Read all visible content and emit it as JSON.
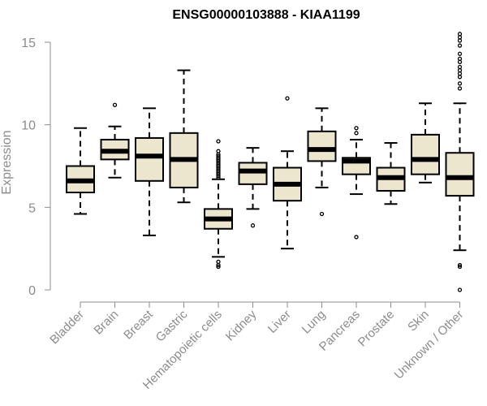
{
  "chart_data": {
    "type": "boxplot",
    "title": "ENSG00000103888 - KIAA1199",
    "xlabel": "",
    "ylabel": "Expression",
    "ylim": [
      0,
      15
    ],
    "yticks": [
      0,
      5,
      10,
      15
    ],
    "box_fill": "#ede6cf",
    "line_color": "#000000",
    "axis_color": "#8c8c8c",
    "categories": [
      "Bladder",
      "Brain",
      "Breast",
      "Gastric",
      "Hematopoietic cells",
      "Kidney",
      "Liver",
      "Lung",
      "Pancreas",
      "Prostate",
      "Skin",
      "Unknown / Other"
    ],
    "boxes": [
      {
        "name": "Bladder",
        "min": 4.6,
        "q1": 5.9,
        "median": 6.6,
        "q3": 7.5,
        "max": 9.8,
        "outliers": []
      },
      {
        "name": "Brain",
        "min": 6.8,
        "q1": 7.9,
        "median": 8.4,
        "q3": 9.1,
        "max": 9.9,
        "outliers": [
          11.2
        ]
      },
      {
        "name": "Breast",
        "min": 3.3,
        "q1": 6.6,
        "median": 8.1,
        "q3": 9.2,
        "max": 11.0,
        "outliers": []
      },
      {
        "name": "Gastric",
        "min": 5.3,
        "q1": 6.2,
        "median": 7.9,
        "q3": 9.5,
        "max": 13.3,
        "outliers": []
      },
      {
        "name": "Hematopoietic cells",
        "min": 2.0,
        "q1": 3.7,
        "median": 4.3,
        "q3": 4.9,
        "max": 6.7,
        "outliers": [
          1.4,
          1.5,
          1.7,
          6.8,
          6.9,
          7.0,
          7.1,
          7.2,
          7.3,
          7.4,
          7.5,
          7.6,
          7.7,
          7.8,
          7.9,
          8.0,
          8.1,
          8.2,
          8.4,
          9.0
        ]
      },
      {
        "name": "Kidney",
        "min": 4.9,
        "q1": 6.4,
        "median": 7.2,
        "q3": 7.7,
        "max": 8.6,
        "outliers": [
          3.9
        ]
      },
      {
        "name": "Liver",
        "min": 2.5,
        "q1": 5.4,
        "median": 6.4,
        "q3": 7.4,
        "max": 8.4,
        "outliers": [
          11.6
        ]
      },
      {
        "name": "Lung",
        "min": 6.2,
        "q1": 7.8,
        "median": 8.5,
        "q3": 9.6,
        "max": 11.0,
        "outliers": [
          4.6
        ]
      },
      {
        "name": "Pancreas",
        "min": 5.8,
        "q1": 7.0,
        "median": 7.8,
        "q3": 8.0,
        "max": 9.1,
        "outliers": [
          3.2,
          9.5,
          9.8
        ]
      },
      {
        "name": "Prostate",
        "min": 5.2,
        "q1": 6.0,
        "median": 6.8,
        "q3": 7.4,
        "max": 8.9,
        "outliers": []
      },
      {
        "name": "Skin",
        "min": 6.5,
        "q1": 7.0,
        "median": 7.9,
        "q3": 9.4,
        "max": 11.3,
        "outliers": []
      },
      {
        "name": "Unknown / Other",
        "min": 2.4,
        "q1": 5.7,
        "median": 6.8,
        "q3": 8.3,
        "max": 11.3,
        "outliers": [
          0.0,
          1.4,
          1.5,
          12.2,
          12.5,
          12.9,
          13.1,
          13.3,
          13.5,
          13.8,
          14.0,
          14.3,
          14.8,
          15.1,
          15.3,
          15.5
        ]
      }
    ]
  }
}
